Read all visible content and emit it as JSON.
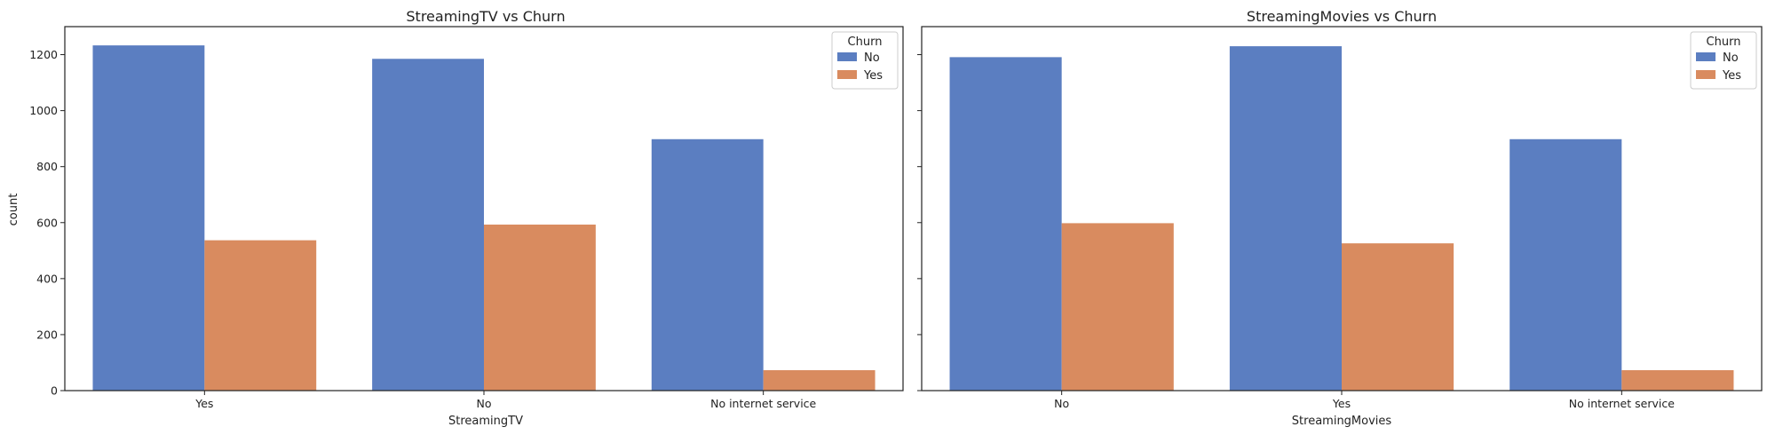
{
  "chart_data": [
    {
      "type": "bar",
      "title": "StreamingTV vs Churn",
      "xlabel": "StreamingTV",
      "ylabel": "count",
      "categories": [
        "Yes",
        "No",
        "No internet service"
      ],
      "series": [
        {
          "name": "No",
          "values": [
            1233,
            1185,
            898
          ],
          "color": "#5b7ec1"
        },
        {
          "name": "Yes",
          "values": [
            537,
            593,
            73
          ],
          "color": "#d98b5f"
        }
      ],
      "ylim": [
        0,
        1300
      ],
      "yticks": [
        0,
        200,
        400,
        600,
        800,
        1000,
        1200
      ],
      "legend": {
        "title": "Churn",
        "placement": "top-right"
      },
      "grid": false
    },
    {
      "type": "bar",
      "title": "StreamingMovies vs Churn",
      "xlabel": "StreamingMovies",
      "ylabel": "",
      "categories": [
        "No",
        "Yes",
        "No internet service"
      ],
      "series": [
        {
          "name": "No",
          "values": [
            1191,
            1230,
            898
          ],
          "color": "#5b7ec1"
        },
        {
          "name": "Yes",
          "values": [
            598,
            526,
            73
          ],
          "color": "#d98b5f"
        }
      ],
      "ylim": [
        0,
        1300
      ],
      "yticks": [
        0,
        200,
        400,
        600,
        800,
        1000,
        1200
      ],
      "legend": {
        "title": "Churn",
        "placement": "top-right"
      },
      "grid": false
    }
  ]
}
